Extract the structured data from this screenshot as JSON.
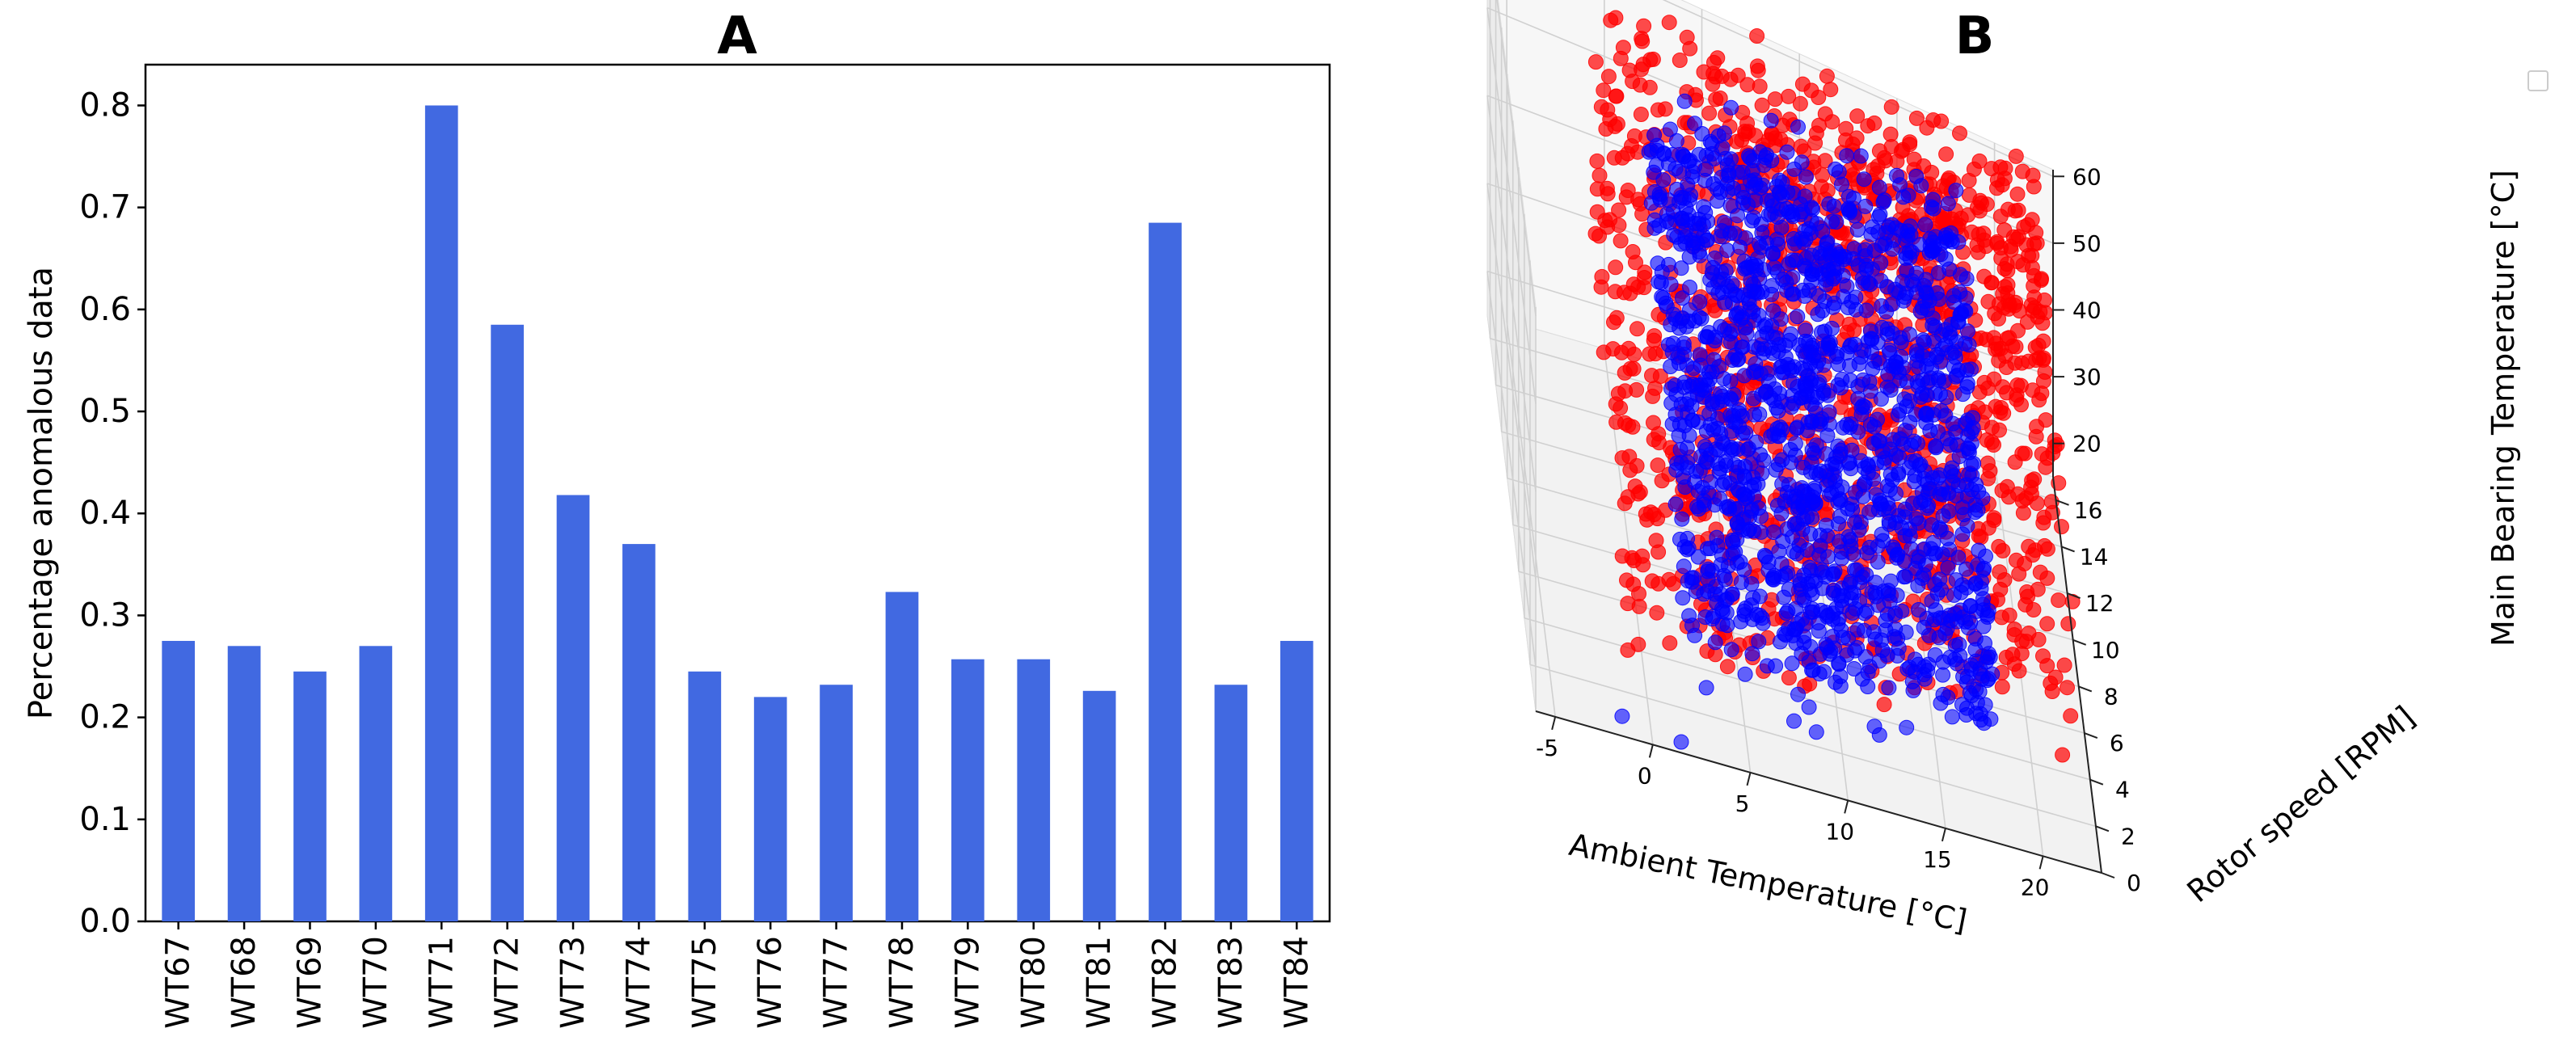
{
  "chart_data": [
    {
      "type": "bar",
      "title": "A",
      "xlabel": "",
      "ylabel": "Percentage anomalous data",
      "categories": [
        "WT67",
        "WT68",
        "WT69",
        "WT70",
        "WT71",
        "WT72",
        "WT73",
        "WT74",
        "WT75",
        "WT76",
        "WT77",
        "WT78",
        "WT79",
        "WT80",
        "WT81",
        "WT82",
        "WT83",
        "WT84"
      ],
      "values": [
        0.275,
        0.27,
        0.245,
        0.27,
        0.8,
        0.585,
        0.418,
        0.37,
        0.245,
        0.22,
        0.232,
        0.323,
        0.257,
        0.257,
        0.226,
        0.685,
        0.232,
        0.275
      ],
      "ylim": [
        0,
        0.84
      ],
      "yticks": [
        "0.0",
        "0.1",
        "0.2",
        "0.3",
        "0.4",
        "0.5",
        "0.6",
        "0.7",
        "0.8"
      ],
      "bar_color": "#4169e1",
      "grid": false
    },
    {
      "type": "scatter",
      "title": "B",
      "projection": "3d",
      "xlabel": "Ambient Temperature [°C]",
      "ylabel": "Rotor speed [RPM]",
      "zlabel": "Main Bearing Temperature [°C]",
      "xlim": [
        -6,
        23
      ],
      "ylim": [
        0,
        17
      ],
      "zlim": [
        15,
        61
      ],
      "xticks": [
        "-5",
        "0",
        "5",
        "10",
        "15",
        "20"
      ],
      "yticks": [
        "0",
        "2",
        "4",
        "6",
        "8",
        "10",
        "12",
        "14",
        "16"
      ],
      "zticks": [
        "20",
        "30",
        "40",
        "50",
        "60"
      ],
      "grid": true,
      "legend_placement": "top-right",
      "series": [
        {
          "color": "#ff0000",
          "marker_alpha": 0.7
        },
        {
          "color": "#0000ff",
          "marker_alpha": 0.6
        }
      ]
    }
  ]
}
